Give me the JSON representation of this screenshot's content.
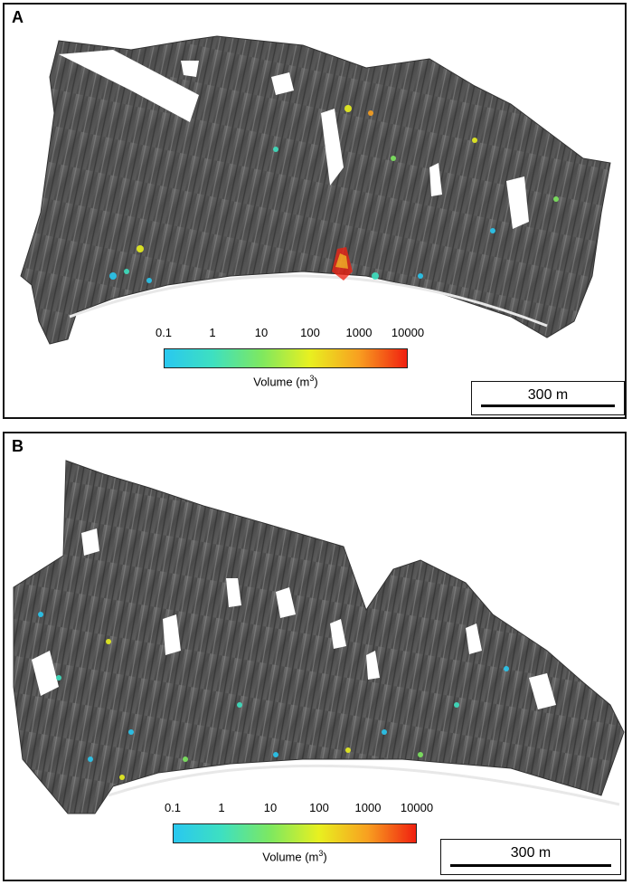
{
  "panels": [
    {
      "letter": "A"
    },
    {
      "letter": "B"
    }
  ],
  "colorbar": {
    "ticks": [
      "0.1",
      "1",
      "10",
      "100",
      "1000",
      "10000"
    ],
    "title": "Volume (m",
    "title_sup": "3",
    "title_end": ")",
    "colors": [
      "#29c8f0",
      "#3ee0c0",
      "#7ee860",
      "#e8f020",
      "#f8a020",
      "#f02010"
    ]
  },
  "scalebar": {
    "label": "300 m"
  }
}
